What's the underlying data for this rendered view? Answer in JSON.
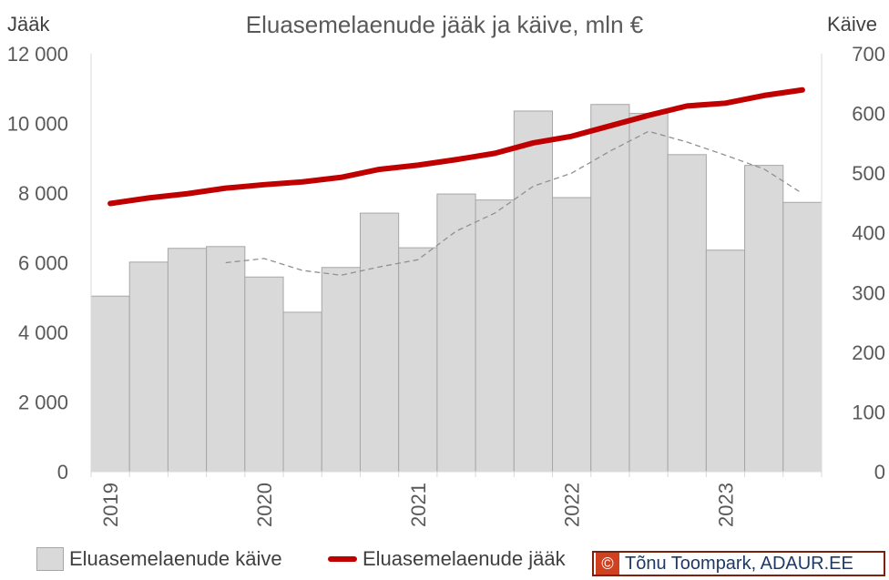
{
  "chart_data": {
    "type": "bar",
    "title": "Eluasemelaenude jääk ja käive, mln €",
    "left_axis_title": "Jääk",
    "right_axis_title": "Käive",
    "left_ticks": [
      "0",
      "2 000",
      "4 000",
      "6 000",
      "8 000",
      "10 000",
      "12 000"
    ],
    "right_ticks": [
      "0",
      "100",
      "200",
      "300",
      "400",
      "500",
      "600",
      "700"
    ],
    "left_range": [
      0,
      12000
    ],
    "right_range": [
      0,
      700
    ],
    "x_tick_labels": [
      "2019",
      "2020",
      "2021",
      "2022",
      "2023"
    ],
    "x_tick_period_index": [
      0,
      4,
      8,
      12,
      16
    ],
    "periods": 19,
    "series": [
      {
        "name": "Eluasemelaenude käive",
        "kind": "bar",
        "axis": "right",
        "color": "#d9d9d9",
        "values": [
          294,
          351,
          374,
          377,
          326,
          267,
          342,
          433,
          375,
          465,
          455,
          604,
          459,
          615,
          600,
          531,
          371,
          513,
          451
        ]
      },
      {
        "name": "Eluasemelaenude jääk",
        "kind": "line",
        "axis": "left",
        "color": "#c00000",
        "values": [
          7700,
          7860,
          7980,
          8140,
          8240,
          8320,
          8450,
          8680,
          8800,
          8960,
          9140,
          9440,
          9630,
          9930,
          10230,
          10500,
          10580,
          10800,
          10960
        ]
      },
      {
        "name": "",
        "kind": "trend",
        "axis": "right",
        "color": "#909090",
        "dashed": true,
        "start_index": 3,
        "values": [
          350,
          357,
          337,
          329,
          343,
          355,
          403,
          433,
          478,
          500,
          537,
          570,
          552,
          530,
          507,
          466
        ]
      }
    ],
    "legend_position": "bottom",
    "grid": false
  },
  "credit": {
    "symbol": "©",
    "text": "Tõnu Toompark, ADAUR.EE"
  }
}
